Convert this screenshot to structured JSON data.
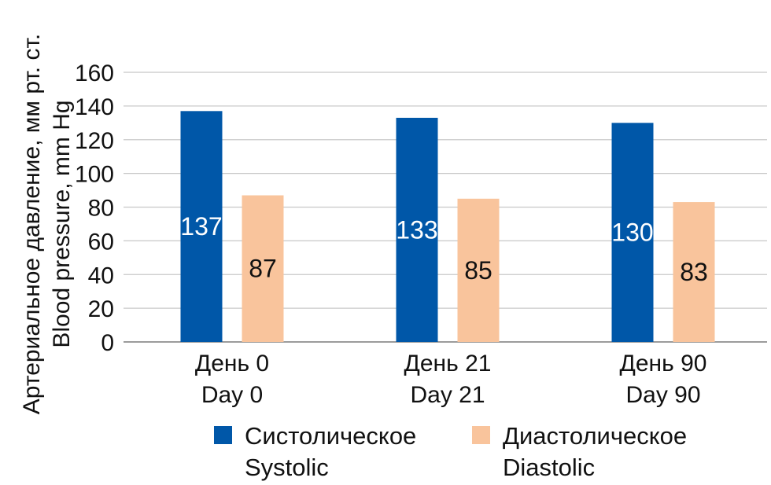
{
  "chart_data": {
    "type": "bar",
    "categories": [
      [
        "День 0",
        "Day 0"
      ],
      [
        "День 21",
        "Day 21"
      ],
      [
        "День 90",
        "Day 90"
      ]
    ],
    "series": [
      {
        "name": [
          "Систолическое",
          "Systolic"
        ],
        "values": [
          137,
          133,
          130
        ],
        "color": "#0057a8",
        "label_color": "#ffffff"
      },
      {
        "name": [
          "Диастолическое",
          "Diastolic"
        ],
        "values": [
          87,
          85,
          83
        ],
        "color": "#f9c49c",
        "label_color": "#111111"
      }
    ],
    "ylabel": [
      "Артериальное давление, мм рт. ст.",
      "Blood pressure, mm Hg"
    ],
    "ylim": [
      0,
      160
    ],
    "yticks": [
      0,
      20,
      40,
      60,
      80,
      100,
      120,
      140,
      160
    ],
    "grid": true,
    "legend_position": "bottom"
  }
}
